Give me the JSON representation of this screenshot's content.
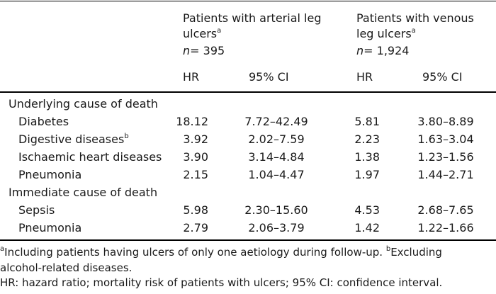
{
  "header": {
    "arterial": {
      "line1": "Patients with arterial leg",
      "line2": "ulcers",
      "sup": "a",
      "n_prefix": "n",
      "n_value": "= 395"
    },
    "venous": {
      "line1": "Patients with venous",
      "line2": "leg ulcers",
      "sup": "a",
      "n_prefix": "n",
      "n_value": "= 1,924"
    },
    "hr_label": "HR",
    "ci_label": "95% CI"
  },
  "sections": [
    {
      "title": "Underlying cause of death",
      "rows": [
        {
          "label": "Diabetes",
          "sup": "",
          "art_hr": "18.12",
          "art_ci": "7.72–42.49",
          "ven_hr": "5.81",
          "ven_ci": "3.80–8.89"
        },
        {
          "label": "Digestive diseases",
          "sup": "b",
          "art_hr": "3.92",
          "art_ci": "2.02–7.59",
          "ven_hr": "2.23",
          "ven_ci": "1.63–3.04"
        },
        {
          "label": "Ischaemic heart diseases",
          "sup": "",
          "art_hr": "3.90",
          "art_ci": "3.14–4.84",
          "ven_hr": "1.38",
          "ven_ci": "1.23–1.56"
        },
        {
          "label": "Pneumonia",
          "sup": "",
          "art_hr": "2.15",
          "art_ci": "1.04–4.47",
          "ven_hr": "1.97",
          "ven_ci": "1.44–2.71"
        }
      ]
    },
    {
      "title": "Immediate cause of death",
      "rows": [
        {
          "label": "Sepsis",
          "sup": "",
          "art_hr": "5.98",
          "art_ci": "2.30–15.60",
          "ven_hr": "4.53",
          "ven_ci": "2.68–7.65"
        },
        {
          "label": "Pneumonia",
          "sup": "",
          "art_hr": "2.79",
          "art_ci": "2.06–3.79",
          "ven_hr": "1.42",
          "ven_ci": "1.22–1.66"
        }
      ]
    }
  ],
  "footnotes": {
    "a_sup": "a",
    "a_text": "Including patients having ulcers of only one aetiology during follow-up.",
    "b_sup": "b",
    "b_text": "Excluding",
    "b_text_cont": "alcohol-related diseases.",
    "abbrev": "HR: hazard ratio; mortality risk of patients with ulcers; 95% CI: confidence interval."
  }
}
